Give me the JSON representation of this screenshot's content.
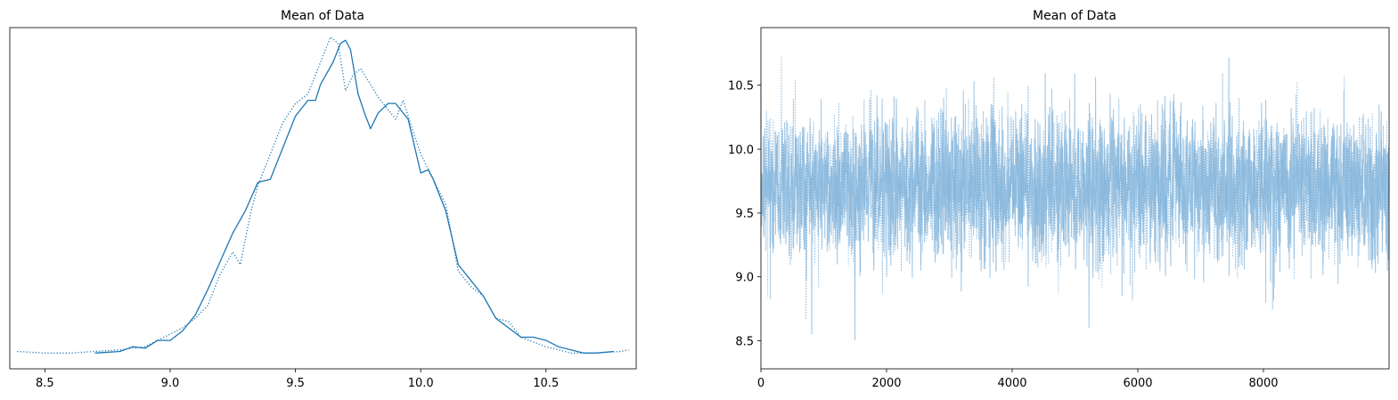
{
  "colors": {
    "line": "#1f77b4",
    "trace": "#7fb2d9",
    "axis": "#000000",
    "background": "#ffffff"
  },
  "chart_data": [
    {
      "type": "line",
      "title": "Mean of Data",
      "xlabel": "",
      "ylabel": "",
      "xlim": [
        8.36,
        10.86
      ],
      "ylim": [
        -0.05,
        1.03
      ],
      "y_ticks_visible": false,
      "grid": false,
      "x_ticks": [
        8.5,
        9.0,
        9.5,
        10.0,
        10.5
      ],
      "x_tick_labels": [
        "8.5",
        "9.0",
        "9.5",
        "10.0",
        "10.5"
      ],
      "series": [
        {
          "style": "solid",
          "x": [
            8.7,
            8.8,
            8.85,
            8.9,
            8.95,
            9.0,
            9.05,
            9.1,
            9.15,
            9.2,
            9.25,
            9.3,
            9.35,
            9.4,
            9.45,
            9.5,
            9.55,
            9.58,
            9.6,
            9.65,
            9.68,
            9.7,
            9.72,
            9.75,
            9.78,
            9.8,
            9.83,
            9.87,
            9.9,
            9.95,
            10.0,
            10.03,
            10.05,
            10.1,
            10.15,
            10.2,
            10.25,
            10.3,
            10.35,
            10.4,
            10.45,
            10.5,
            10.55,
            10.6,
            10.65,
            10.7,
            10.77
          ],
          "y": [
            0.0,
            0.005,
            0.02,
            0.015,
            0.04,
            0.04,
            0.07,
            0.12,
            0.2,
            0.29,
            0.38,
            0.45,
            0.54,
            0.55,
            0.65,
            0.75,
            0.8,
            0.8,
            0.85,
            0.92,
            0.98,
            0.99,
            0.96,
            0.82,
            0.75,
            0.71,
            0.76,
            0.79,
            0.79,
            0.74,
            0.57,
            0.58,
            0.55,
            0.45,
            0.28,
            0.23,
            0.18,
            0.11,
            0.08,
            0.05,
            0.05,
            0.04,
            0.02,
            0.01,
            0.0,
            0.0,
            0.005
          ]
        },
        {
          "style": "dotted",
          "x": [
            8.39,
            8.5,
            8.6,
            8.7,
            8.8,
            8.9,
            9.0,
            9.05,
            9.1,
            9.15,
            9.2,
            9.25,
            9.28,
            9.32,
            9.35,
            9.4,
            9.45,
            9.5,
            9.55,
            9.6,
            9.64,
            9.67,
            9.7,
            9.73,
            9.76,
            9.8,
            9.83,
            9.87,
            9.9,
            9.93,
            9.97,
            10.0,
            10.05,
            10.1,
            10.15,
            10.2,
            10.25,
            10.3,
            10.35,
            10.4,
            10.5,
            10.6,
            10.7,
            10.8,
            10.83
          ],
          "y": [
            0.005,
            0.0,
            0.0,
            0.005,
            0.01,
            0.02,
            0.06,
            0.08,
            0.11,
            0.15,
            0.25,
            0.32,
            0.28,
            0.44,
            0.53,
            0.63,
            0.73,
            0.79,
            0.82,
            0.92,
            1.0,
            0.98,
            0.83,
            0.88,
            0.9,
            0.85,
            0.81,
            0.77,
            0.74,
            0.8,
            0.7,
            0.63,
            0.55,
            0.47,
            0.26,
            0.21,
            0.18,
            0.11,
            0.1,
            0.05,
            0.02,
            0.0,
            0.0,
            0.005,
            0.01
          ]
        }
      ]
    },
    {
      "type": "line",
      "title": "Mean of Data",
      "xlabel": "",
      "ylabel": "",
      "xlim": [
        0,
        10000
      ],
      "ylim": [
        8.28,
        10.95
      ],
      "grid": false,
      "x_ticks": [
        0,
        2000,
        4000,
        6000,
        8000
      ],
      "x_tick_labels": [
        "0",
        "2000",
        "4000",
        "6000",
        "8000"
      ],
      "y_ticks": [
        8.5,
        9.0,
        9.5,
        10.0,
        10.5
      ],
      "y_tick_labels": [
        "8.5",
        "9.0",
        "9.5",
        "10.0",
        "10.5"
      ],
      "series": [
        {
          "style": "solid",
          "n_draws": 10000,
          "mean": 9.72,
          "sd": 0.29,
          "min": 8.5,
          "max": 10.78
        },
        {
          "style": "dotted",
          "n_draws": 10000,
          "mean": 9.72,
          "sd": 0.29,
          "min": 8.4,
          "max": 10.82
        }
      ]
    }
  ]
}
